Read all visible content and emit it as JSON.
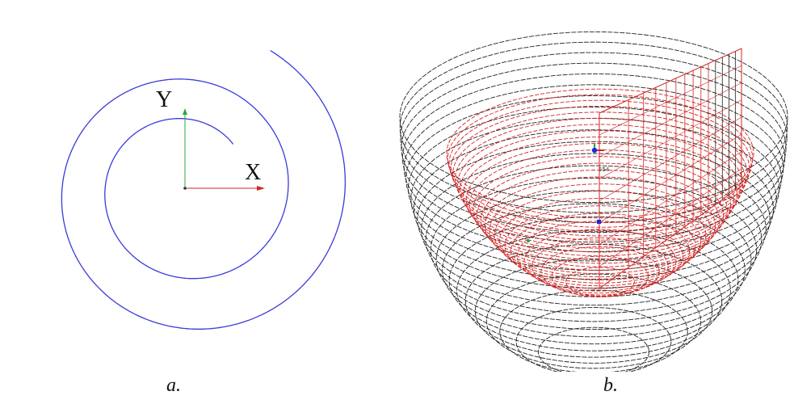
{
  "panel_a": {
    "caption": "a.",
    "axis_y_label": "Y",
    "axis_x_label": "X"
  },
  "panel_b": {
    "caption": "b.",
    "tiny_label": "554"
  },
  "colors": {
    "spiral": "#3a3adb",
    "x_axis": "#cc2a2a",
    "y_axis": "#24a83a",
    "mesh_black": "#222222",
    "mesh_red": "#d42222",
    "marker_blue": "#1a2ad8"
  }
}
